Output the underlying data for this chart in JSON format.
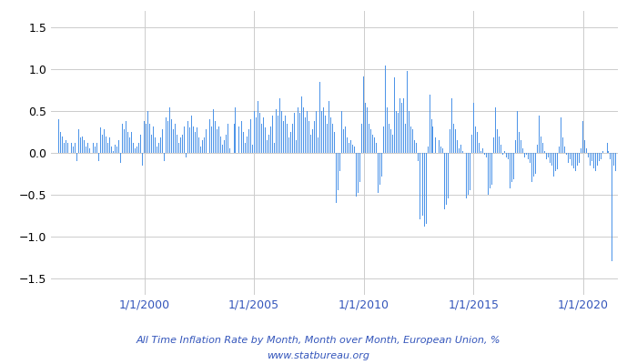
{
  "title_line1": "All Time Inflation Rate by Month, Month over Month, European Union, %",
  "title_line2": "www.statbureau.org",
  "title_color": "#3355bb",
  "bar_color": "#4d94e8",
  "background_color": "#ffffff",
  "grid_color": "#cccccc",
  "ylim": [
    -1.7,
    1.7
  ],
  "yticks": [
    -1.5,
    -1.0,
    -0.5,
    0.0,
    0.5,
    1.0,
    1.5
  ],
  "start_year": 1996,
  "start_month": 2,
  "xtick_years": [
    2000,
    2005,
    2010,
    2015,
    2020
  ],
  "values": [
    0.4,
    0.25,
    0.2,
    0.12,
    0.15,
    0.12,
    0.0,
    0.12,
    0.08,
    0.12,
    -0.1,
    0.28,
    0.18,
    0.2,
    0.15,
    0.08,
    0.12,
    0.05,
    0.0,
    0.12,
    0.08,
    0.12,
    -0.1,
    0.3,
    0.22,
    0.28,
    0.2,
    0.12,
    0.18,
    0.08,
    0.02,
    0.1,
    0.08,
    0.15,
    -0.12,
    0.35,
    0.28,
    0.38,
    0.25,
    0.18,
    0.25,
    0.12,
    0.05,
    0.08,
    0.12,
    0.22,
    -0.15,
    0.38,
    0.35,
    0.5,
    0.35,
    0.22,
    0.32,
    0.18,
    0.08,
    0.12,
    0.18,
    0.28,
    -0.1,
    0.42,
    0.38,
    0.55,
    0.4,
    0.28,
    0.35,
    0.22,
    0.12,
    0.18,
    0.22,
    0.32,
    -0.05,
    0.38,
    0.3,
    0.45,
    0.32,
    0.25,
    0.3,
    0.18,
    0.08,
    0.15,
    0.18,
    0.28,
    0.0,
    0.4,
    0.32,
    0.52,
    0.38,
    0.28,
    0.32,
    0.2,
    0.1,
    0.15,
    0.22,
    0.35,
    0.05,
    0.45,
    0.35,
    0.55,
    0.42,
    0.32,
    0.38,
    0.25,
    0.12,
    0.2,
    0.28,
    0.4,
    0.1,
    0.5,
    0.42,
    0.62,
    0.48,
    0.35,
    0.42,
    0.3,
    0.15,
    0.22,
    0.32,
    0.45,
    0.12,
    0.52,
    0.45,
    0.65,
    0.5,
    0.38,
    0.45,
    0.35,
    0.18,
    0.25,
    0.35,
    0.48,
    0.15,
    0.55,
    0.48,
    0.68,
    0.55,
    0.42,
    0.5,
    0.38,
    0.22,
    0.28,
    0.38,
    0.5,
    0.18,
    0.85,
    0.5,
    0.55,
    0.45,
    0.35,
    0.62,
    0.42,
    0.35,
    0.25,
    -0.6,
    -0.45,
    -0.22,
    0.5,
    0.28,
    0.32,
    0.18,
    0.12,
    0.15,
    0.1,
    0.08,
    -0.52,
    -0.48,
    -0.35,
    0.35,
    0.92,
    0.6,
    0.55,
    0.35,
    0.28,
    0.22,
    0.18,
    0.12,
    -0.48,
    -0.38,
    -0.28,
    0.32,
    1.05,
    0.55,
    0.35,
    0.28,
    0.22,
    0.9,
    0.5,
    0.48,
    0.65,
    0.6,
    0.65,
    0.35,
    0.98,
    0.5,
    0.32,
    0.28,
    0.15,
    0.12,
    -0.1,
    -0.8,
    -0.75,
    -0.88,
    -0.85,
    0.08,
    0.7,
    0.4,
    0.32,
    0.18,
    0.1,
    0.15,
    0.08,
    0.05,
    -0.68,
    -0.62,
    -0.55,
    0.28,
    0.65,
    0.35,
    0.28,
    0.15,
    0.05,
    0.1,
    0.02,
    0.0,
    -0.55,
    -0.5,
    -0.45,
    0.22,
    0.6,
    0.32,
    0.25,
    0.12,
    0.02,
    0.05,
    -0.02,
    -0.05,
    -0.5,
    -0.42,
    -0.38,
    0.18,
    0.55,
    0.28,
    0.2,
    0.1,
    -0.02,
    0.02,
    -0.05,
    -0.08,
    -0.42,
    -0.35,
    -0.32,
    0.15,
    0.5,
    0.25,
    0.15,
    0.05,
    -0.05,
    -0.02,
    -0.08,
    -0.12,
    -0.35,
    -0.28,
    -0.25,
    0.1,
    0.45,
    0.2,
    0.12,
    0.02,
    -0.08,
    -0.05,
    -0.12,
    -0.15,
    -0.28,
    -0.22,
    -0.2,
    0.08,
    0.42,
    0.18,
    0.08,
    -0.02,
    -0.12,
    -0.08,
    -0.15,
    -0.18,
    -0.22,
    -0.15,
    -0.12,
    0.05,
    0.38,
    0.15,
    0.05,
    -0.05,
    -0.15,
    -0.1,
    -0.18,
    -0.22,
    -0.15,
    -0.1,
    -0.08,
    0.02,
    0.35,
    0.12,
    0.02,
    -0.08,
    -1.3,
    -0.15,
    -0.22,
    -0.25,
    -0.1,
    -0.05,
    0.0,
    -0.02
  ]
}
